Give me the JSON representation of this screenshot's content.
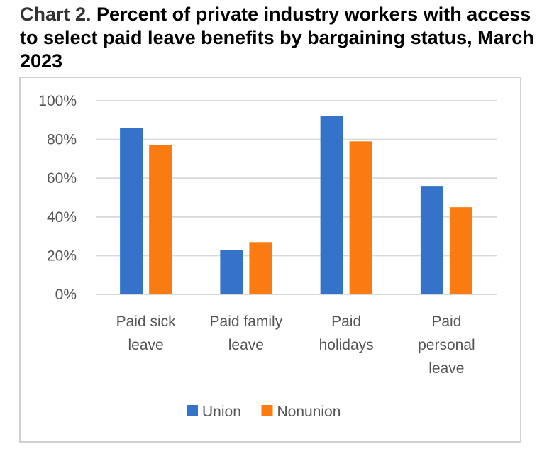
{
  "title": {
    "prefix": "Chart 2.",
    "text": "Percent of private industry workers with access to select paid leave benefits by bargaining status, March 2023"
  },
  "colors": {
    "union": "#3572c9",
    "nonunion": "#f97b12",
    "gridline": "#d9d9d9",
    "axis_text": "#555555"
  },
  "chart_data": {
    "type": "bar",
    "categories": [
      [
        "Paid sick",
        "leave"
      ],
      [
        "Paid family",
        "leave"
      ],
      [
        "Paid",
        "holidays"
      ],
      [
        "Paid",
        "personal",
        "leave"
      ]
    ],
    "series": [
      {
        "name": "Union",
        "values": [
          86,
          23,
          92,
          56
        ]
      },
      {
        "name": "Nonunion",
        "values": [
          77,
          27,
          79,
          45
        ]
      }
    ],
    "y_ticks": [
      "0%",
      "20%",
      "40%",
      "60%",
      "80%",
      "100%"
    ],
    "ylim": [
      0,
      100
    ],
    "grid": true,
    "legend_position": "bottom"
  }
}
